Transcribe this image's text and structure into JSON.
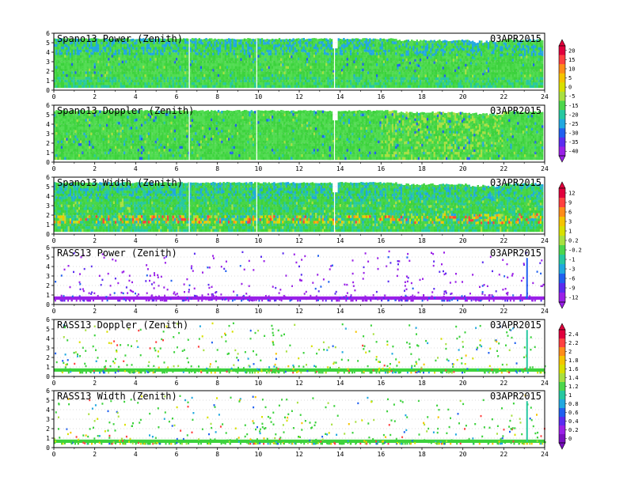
{
  "figure": {
    "date": "03APR2015",
    "x_ticks": [
      "0",
      "2",
      "4",
      "6",
      "8",
      "10",
      "12",
      "14",
      "16",
      "18",
      "20",
      "22",
      "24"
    ],
    "y_ticks": [
      "0",
      "1",
      "2",
      "3",
      "4",
      "5",
      "6"
    ]
  },
  "chart_data": [
    {
      "type": "heatmap",
      "title": "Spano13 Power (Zenith)",
      "xlim": [
        0,
        24
      ],
      "ylim": [
        0,
        6
      ],
      "fill": "dense",
      "palette": "A",
      "base": "green",
      "colorbar": 0
    },
    {
      "type": "heatmap",
      "title": "Spano13 Doppler (Zenith)",
      "xlim": [
        0,
        24
      ],
      "ylim": [
        0,
        6
      ],
      "fill": "dense",
      "palette": "A",
      "base": "green",
      "colorbar": 0
    },
    {
      "type": "heatmap",
      "title": "Spano13 Width (Zenith)",
      "xlim": [
        0,
        24
      ],
      "ylim": [
        0,
        6
      ],
      "fill": "dense",
      "palette": "B",
      "base": "green",
      "colorbar": 1
    },
    {
      "type": "heatmap",
      "title": "RASS13 Power (Zenith)",
      "xlim": [
        0,
        24
      ],
      "ylim": [
        0,
        6
      ],
      "fill": "sparse",
      "palette": "B",
      "base": "purple",
      "colorbar": 1
    },
    {
      "type": "heatmap",
      "title": "RASS13 Doppler (Zenith)",
      "xlim": [
        0,
        24
      ],
      "ylim": [
        0,
        6
      ],
      "fill": "sparse",
      "palette": "C",
      "base": "green",
      "colorbar": 2
    },
    {
      "type": "heatmap",
      "title": "RASS13 Width (Zenith)",
      "xlim": [
        0,
        24
      ],
      "ylim": [
        0,
        6
      ],
      "fill": "sparse",
      "palette": "C",
      "base": "green",
      "colorbar": 2
    }
  ],
  "colorbars": [
    {
      "labels": [
        "20",
        "15",
        "10",
        "5",
        "0",
        "-5",
        "-15",
        "-20",
        "-25",
        "-30",
        "-35",
        "-40"
      ],
      "colors": [
        "#e0003c",
        "#ff4040",
        "#ff8c1a",
        "#f5c400",
        "#d8e000",
        "#a8e040",
        "#4cd64c",
        "#26c8a0",
        "#20a8e0",
        "#2060f0",
        "#5a2cf0",
        "#9a20e8"
      ]
    },
    {
      "labels": [
        "12",
        "9",
        "6",
        "3",
        "1",
        "0.2",
        "-0.2",
        "-1",
        "-3",
        "-6",
        "-9",
        "-12"
      ],
      "colors": [
        "#e0003c",
        "#ff4040",
        "#ff8c1a",
        "#f5c400",
        "#d8e000",
        "#a8e040",
        "#4cd64c",
        "#26c8a0",
        "#20a8e0",
        "#2060f0",
        "#5a2cf0",
        "#9a20e8"
      ]
    },
    {
      "labels": [
        "2.4",
        "2.2",
        "2",
        "1.8",
        "1.6",
        "1.4",
        "1.2",
        "1",
        "0.8",
        "0.6",
        "0.4",
        "0.2",
        "0"
      ],
      "colors": [
        "#e0003c",
        "#ff4040",
        "#ff8c1a",
        "#f5c400",
        "#d8e000",
        "#a8e040",
        "#4cd64c",
        "#26c8a0",
        "#20a8e0",
        "#2060f0",
        "#5a2cf0",
        "#9a20e8",
        "#7a10c0"
      ]
    }
  ]
}
